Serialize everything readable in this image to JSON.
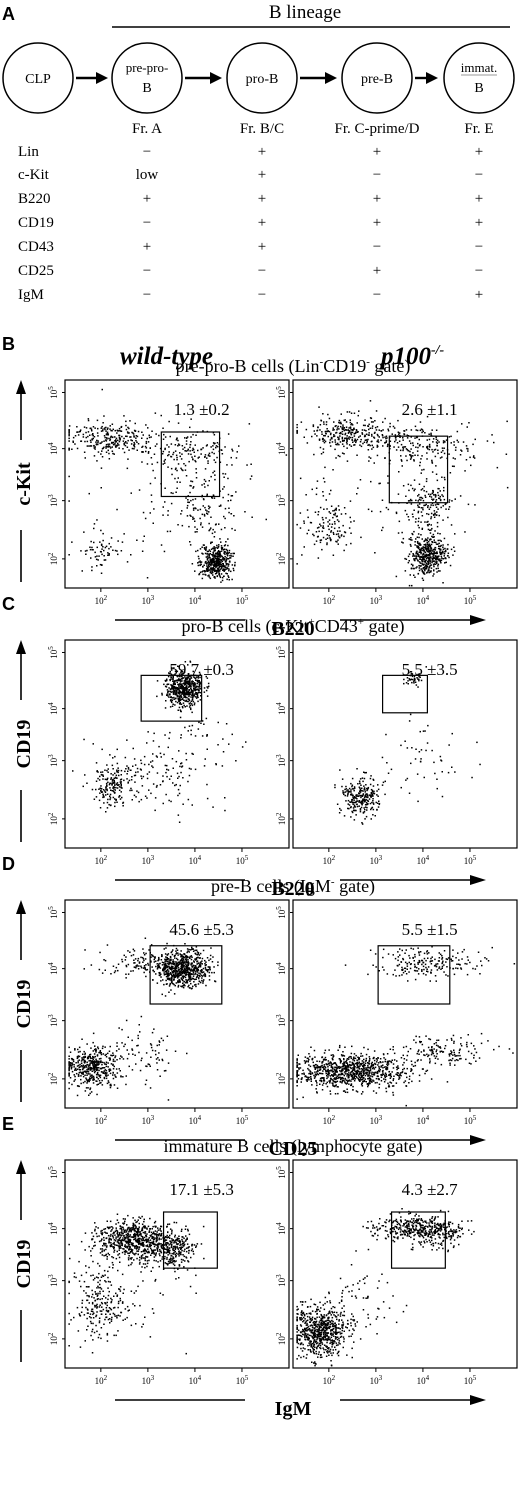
{
  "panel_a": {
    "label": "A",
    "lineage_title": "B lineage",
    "stages": [
      {
        "line1": "CLP",
        "line2": "",
        "fraction": ""
      },
      {
        "line1": "pre-pro-",
        "line2": "B",
        "fraction": "Fr. A"
      },
      {
        "line1": "pro-B",
        "line2": "",
        "fraction": "Fr. B/C"
      },
      {
        "line1": "pre-B",
        "line2": "",
        "fraction": "Fr. C-prime/D"
      },
      {
        "line1": "immat.",
        "line2": "B",
        "fraction": "Fr. E"
      }
    ],
    "markers": [
      {
        "name": "Lin",
        "values": [
          "−",
          "+",
          "+",
          "+"
        ]
      },
      {
        "name": "c-Kit",
        "values": [
          "low",
          "+",
          "−",
          "−"
        ]
      },
      {
        "name": "B220",
        "values": [
          "+",
          "+",
          "+",
          "+"
        ]
      },
      {
        "name": "CD19",
        "values": [
          "−",
          "+",
          "+",
          "+"
        ]
      },
      {
        "name": "CD43",
        "values": [
          "+",
          "+",
          "−",
          "−"
        ]
      },
      {
        "name": "CD25",
        "values": [
          "−",
          "−",
          "+",
          "−"
        ]
      },
      {
        "name": "IgM",
        "values": [
          "−",
          "−",
          "−",
          "+"
        ]
      }
    ]
  },
  "columns": {
    "wt": "wild-type",
    "ko_base": "p100",
    "ko_sup": "-/-"
  },
  "tick_labels": {
    "base": "10",
    "exps": [
      "2",
      "3",
      "4",
      "5"
    ]
  },
  "panels": [
    {
      "label": "B",
      "title_pre": "pre-pro-B cells (Lin",
      "title_sup1": "-",
      "title_mid": "CD19",
      "title_sup2": "-",
      "title_post": " gate)",
      "ylabel": "c-Kit",
      "xlabel": "B220",
      "values": [
        "1.3 ±0.2",
        "2.6 ±1.1"
      ]
    },
    {
      "label": "C",
      "title_pre": "pro-B cells (c-Kit",
      "title_sup1": "+",
      "title_mid": "CD43",
      "title_sup2": "+",
      "title_post": " gate)",
      "ylabel": "CD19",
      "xlabel": "B220",
      "values": [
        "59.7 ±0.3",
        "5.5 ±3.5"
      ]
    },
    {
      "label": "D",
      "title_pre": "pre-B cells (IgM",
      "title_sup1": "-",
      "title_mid": "",
      "title_sup2": "",
      "title_post": " gate)",
      "ylabel": "CD19",
      "xlabel": "CD25",
      "values": [
        "45.6 ±5.3",
        "5.5 ±1.5"
      ]
    },
    {
      "label": "E",
      "title_pre": "immature B cells (lymphocyte gate)",
      "title_sup1": "",
      "title_mid": "",
      "title_sup2": "",
      "title_post": "",
      "ylabel": "CD19",
      "xlabel": "IgM",
      "values": [
        "17.1 ±5.3",
        "4.3 ±2.7"
      ]
    }
  ]
}
